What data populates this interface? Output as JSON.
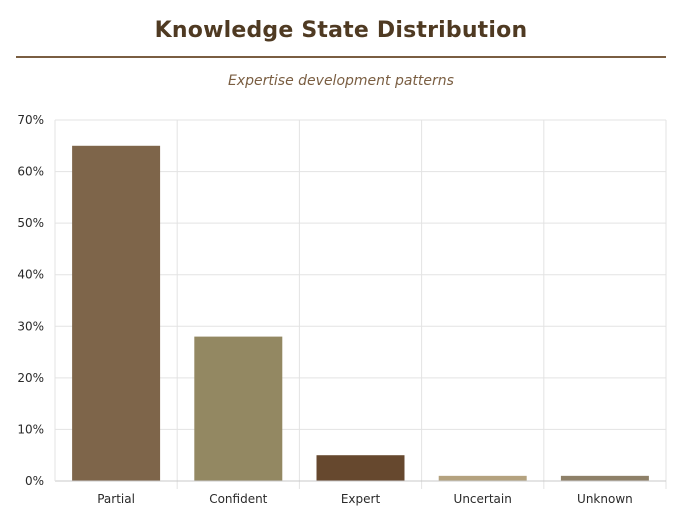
{
  "chart_data": {
    "type": "bar",
    "title": "Knowledge State Distribution",
    "subtitle": "Expertise development patterns",
    "xlabel": "",
    "ylabel": "",
    "categories": [
      "Partial",
      "Confident",
      "Expert",
      "Uncertain",
      "Unknown"
    ],
    "values": [
      65,
      28,
      5,
      1,
      1
    ],
    "value_unit": "%",
    "ylim": [
      0,
      70
    ],
    "y_ticks": [
      0,
      10,
      20,
      30,
      40,
      50,
      60,
      70
    ],
    "y_tick_labels": [
      "0%",
      "10%",
      "20%",
      "30%",
      "40%",
      "50%",
      "60%",
      "70%"
    ],
    "bar_colors": [
      "#7e654a",
      "#938862",
      "#66482e",
      "#b4a27f",
      "#8e8068"
    ],
    "grid": true,
    "legend": "none"
  }
}
